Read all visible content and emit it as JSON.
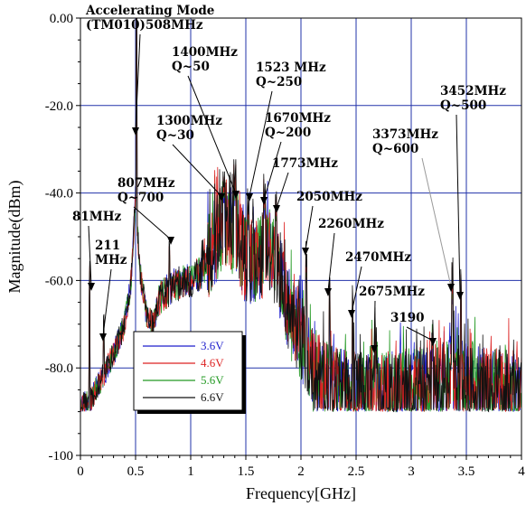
{
  "chart_data": {
    "type": "line",
    "title": "",
    "xlabel": "Frequency[GHz]",
    "ylabel": "Magnitude(dBm)",
    "xlim": [
      0,
      4
    ],
    "ylim": [
      -100,
      0
    ],
    "x_ticks": [
      0,
      0.5,
      1,
      1.5,
      2,
      2.5,
      3,
      3.5,
      4
    ],
    "x_tick_labels": [
      "0",
      "0.5",
      "1",
      "1.5",
      "2",
      "2.5",
      "3",
      "3.5",
      "4"
    ],
    "y_ticks": [
      0,
      -20,
      -40,
      -60,
      -80,
      -100
    ],
    "y_tick_labels": [
      "0.00",
      "-20.0",
      "-40.0",
      "-60.0",
      "-80.0",
      "-100"
    ],
    "grid": true,
    "legend_position": "bottom-left",
    "series": [
      {
        "name": "3.6V",
        "color": "#1f1fcc"
      },
      {
        "name": "4.6V",
        "color": "#dd2222"
      },
      {
        "name": "5.6V",
        "color": "#229922"
      },
      {
        "name": "6.6V",
        "color": "#111111"
      }
    ],
    "annotations": [
      {
        "lines": [
          "Accelerating Mode",
          "(TM010)508MHz"
        ],
        "target": [
          0.508,
          -27
        ]
      },
      {
        "lines": [
          "1400MHz",
          "Q~50"
        ],
        "target": [
          1.4,
          -43
        ]
      },
      {
        "lines": [
          "1523  MHz",
          "Q~250"
        ],
        "target": [
          1.523,
          -46
        ]
      },
      {
        "lines": [
          "1300MHz",
          "Q~30"
        ],
        "target": [
          1.3,
          -43
        ]
      },
      {
        "lines": [
          "1670MHz",
          "Q~200"
        ],
        "target": [
          1.67,
          -45
        ]
      },
      {
        "lines": [
          "1773MHz"
        ],
        "target": [
          1.773,
          -47
        ]
      },
      {
        "lines": [
          "807MHz",
          "Q~700"
        ],
        "target": [
          0.807,
          -56
        ]
      },
      {
        "lines": [
          "3373MHz",
          "Q~600"
        ],
        "target": [
          3.373,
          -64
        ]
      },
      {
        "lines": [
          "3452MHz",
          "Q~500"
        ],
        "target": [
          3.452,
          -66
        ]
      },
      {
        "lines": [
          "2050MHz"
        ],
        "target": [
          2.05,
          -60
        ]
      },
      {
        "lines": [
          "81MHz"
        ],
        "target": [
          0.081,
          -65
        ]
      },
      {
        "lines": [
          "2260MHz"
        ],
        "target": [
          2.26,
          -66
        ]
      },
      {
        "lines": [
          "211",
          "MHz"
        ],
        "target": [
          0.211,
          -76
        ]
      },
      {
        "lines": [
          "2470MHz"
        ],
        "target": [
          2.47,
          -71
        ]
      },
      {
        "lines": [
          "2675MHz"
        ],
        "target": [
          2.675,
          -77
        ]
      },
      {
        "lines": [
          "3190"
        ],
        "target": [
          3.19,
          -80
        ]
      }
    ]
  }
}
